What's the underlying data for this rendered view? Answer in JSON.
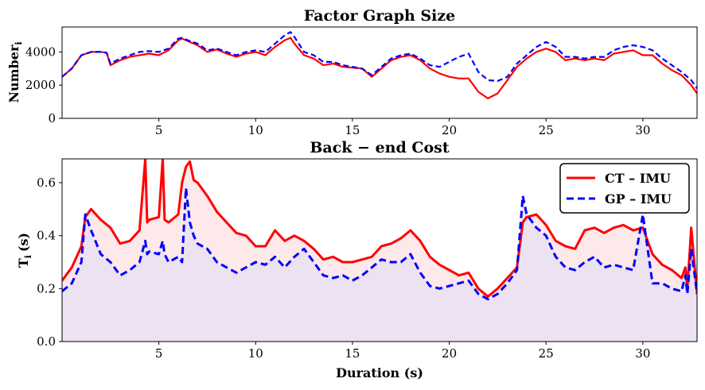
{
  "chart_data": [
    {
      "type": "line",
      "title": "Factor Graph Size",
      "ylabel": "Number",
      "ylabel_sub": "i",
      "xlabel": "",
      "xlim": [
        0,
        32.8
      ],
      "ylim": [
        0,
        5500
      ],
      "xticks": [
        5,
        10,
        15,
        20,
        25,
        30
      ],
      "yticks": [
        0,
        2000,
        4000
      ],
      "series": [
        {
          "name": "CT-IMU",
          "color": "#ff0000",
          "style": "solid",
          "x": [
            0,
            0.5,
            1,
            1.5,
            2,
            2.3,
            2.5,
            3,
            3.5,
            4,
            4.5,
            5,
            5.5,
            6,
            6.2,
            6.5,
            7,
            7.5,
            8,
            8.5,
            9,
            9.5,
            10,
            10.5,
            11,
            11.5,
            11.8,
            12,
            12.5,
            13,
            13.5,
            14,
            14.5,
            15,
            15.5,
            16,
            16.5,
            17,
            17.5,
            18,
            18.5,
            19,
            19.5,
            20,
            20.5,
            21,
            21.5,
            22,
            22.5,
            23,
            23.5,
            24,
            24.5,
            25,
            25.5,
            26,
            26.5,
            27,
            27.5,
            28,
            28.5,
            29,
            29.5,
            30,
            30.5,
            31,
            31.5,
            32,
            32.5,
            32.8
          ],
          "values": [
            2500,
            3000,
            3800,
            4000,
            4000,
            3950,
            3200,
            3500,
            3700,
            3800,
            3900,
            3800,
            4100,
            4700,
            4800,
            4650,
            4400,
            4000,
            4150,
            3900,
            3700,
            3900,
            4000,
            3800,
            4300,
            4700,
            4850,
            4500,
            3800,
            3600,
            3200,
            3300,
            3100,
            3050,
            3000,
            2500,
            3000,
            3500,
            3700,
            3800,
            3500,
            3000,
            2700,
            2500,
            2400,
            2400,
            1600,
            1200,
            1500,
            2300,
            3100,
            3600,
            4000,
            4200,
            4000,
            3500,
            3600,
            3500,
            3600,
            3500,
            3900,
            4000,
            4100,
            3800,
            3800,
            3300,
            2900,
            2600,
            2000,
            1500
          ]
        },
        {
          "name": "GP-IMU",
          "color": "#0000ff",
          "style": "dashed",
          "x": [
            0,
            0.5,
            1,
            1.5,
            2,
            2.3,
            2.5,
            3,
            3.5,
            4,
            4.5,
            5,
            5.5,
            6,
            6.2,
            6.5,
            7,
            7.5,
            8,
            8.5,
            9,
            9.5,
            10,
            10.5,
            11,
            11.5,
            11.8,
            12,
            12.5,
            13,
            13.5,
            14,
            14.5,
            15,
            15.5,
            16,
            16.5,
            17,
            17.5,
            18,
            18.5,
            19,
            19.5,
            20,
            20.5,
            21,
            21.5,
            22,
            22.5,
            23,
            23.5,
            24,
            24.5,
            25,
            25.5,
            26,
            26.5,
            27,
            27.5,
            28,
            28.5,
            29,
            29.5,
            30,
            30.5,
            31,
            31.5,
            32,
            32.5,
            32.8
          ],
          "values": [
            2500,
            3000,
            3800,
            4000,
            4000,
            3950,
            3300,
            3600,
            3800,
            4000,
            4050,
            4000,
            4200,
            4800,
            4850,
            4700,
            4500,
            4100,
            4200,
            4000,
            3800,
            4000,
            4100,
            4000,
            4500,
            5000,
            5200,
            4900,
            4000,
            3800,
            3400,
            3400,
            3200,
            3100,
            3000,
            2600,
            3100,
            3600,
            3800,
            3900,
            3600,
            3200,
            3100,
            3400,
            3700,
            3900,
            2800,
            2300,
            2250,
            2500,
            3300,
            3800,
            4300,
            4600,
            4300,
            3700,
            3700,
            3600,
            3700,
            3700,
            4100,
            4300,
            4400,
            4300,
            4100,
            3600,
            3200,
            2800,
            2300,
            1800
          ]
        }
      ]
    },
    {
      "type": "area",
      "title": "Back − end Cost",
      "xlabel": "Duration (s)",
      "ylabel": "T",
      "ylabel_sub": "i",
      "ylabel_unit": "(s)",
      "xlim": [
        0,
        32.8
      ],
      "ylim": [
        0,
        0.69
      ],
      "xticks": [
        5,
        10,
        15,
        20,
        25,
        30
      ],
      "yticks": [
        0.0,
        0.2,
        0.4,
        0.6
      ],
      "legend_position": "top-right",
      "series": [
        {
          "name": "CT – IMU",
          "color": "#ff0000",
          "fill": "#fde8ea",
          "style": "solid",
          "x": [
            0,
            0.5,
            1,
            1.2,
            1.5,
            2,
            2.5,
            3,
            3.5,
            4,
            4.3,
            4.4,
            4.5,
            5,
            5.2,
            5.3,
            5.5,
            6,
            6.2,
            6.4,
            6.6,
            6.8,
            7,
            7.5,
            8,
            8.5,
            9,
            9.5,
            10,
            10.5,
            11,
            11.5,
            12,
            12.5,
            13,
            13.5,
            14,
            14.5,
            15,
            15.5,
            16,
            16.5,
            17,
            17.5,
            18,
            18.5,
            19,
            19.5,
            20,
            20.5,
            21,
            21.5,
            22,
            22.5,
            23,
            23.5,
            23.8,
            24,
            24.5,
            25,
            25.5,
            26,
            26.5,
            27,
            27.5,
            28,
            28.5,
            29,
            29.5,
            30,
            30.5,
            31,
            31.5,
            32,
            32.2,
            32.3,
            32.5,
            32.8
          ],
          "values": [
            0.23,
            0.28,
            0.36,
            0.47,
            0.5,
            0.46,
            0.43,
            0.37,
            0.38,
            0.42,
            0.69,
            0.45,
            0.46,
            0.47,
            0.69,
            0.46,
            0.45,
            0.48,
            0.6,
            0.66,
            0.68,
            0.61,
            0.6,
            0.55,
            0.49,
            0.45,
            0.41,
            0.4,
            0.36,
            0.36,
            0.42,
            0.38,
            0.4,
            0.38,
            0.35,
            0.31,
            0.32,
            0.3,
            0.3,
            0.31,
            0.32,
            0.36,
            0.37,
            0.39,
            0.42,
            0.38,
            0.32,
            0.29,
            0.27,
            0.25,
            0.26,
            0.2,
            0.17,
            0.2,
            0.24,
            0.28,
            0.45,
            0.47,
            0.48,
            0.44,
            0.38,
            0.36,
            0.35,
            0.42,
            0.43,
            0.41,
            0.43,
            0.44,
            0.42,
            0.43,
            0.33,
            0.29,
            0.27,
            0.24,
            0.28,
            0.2,
            0.43,
            0.18
          ]
        },
        {
          "name": "GP – IMU",
          "color": "#0000ff",
          "fill": "#ece2f1",
          "style": "dashed",
          "x": [
            0,
            0.5,
            1,
            1.2,
            1.5,
            2,
            2.5,
            3,
            3.5,
            4,
            4.3,
            4.4,
            4.5,
            5,
            5.2,
            5.3,
            5.5,
            6,
            6.2,
            6.4,
            6.6,
            6.8,
            7,
            7.5,
            8,
            8.5,
            9,
            9.5,
            10,
            10.5,
            11,
            11.5,
            12,
            12.5,
            13,
            13.5,
            14,
            14.5,
            15,
            15.5,
            16,
            16.5,
            17,
            17.5,
            18,
            18.5,
            19,
            19.5,
            20,
            20.5,
            21,
            21.5,
            22,
            22.5,
            23,
            23.5,
            23.8,
            24,
            24.5,
            25,
            25.5,
            26,
            26.5,
            27,
            27.5,
            28,
            28.5,
            29,
            29.5,
            30,
            30.5,
            31,
            31.5,
            32,
            32.2,
            32.3,
            32.5,
            32.8
          ],
          "values": [
            0.19,
            0.22,
            0.3,
            0.48,
            0.42,
            0.33,
            0.3,
            0.25,
            0.27,
            0.3,
            0.38,
            0.33,
            0.34,
            0.33,
            0.38,
            0.33,
            0.3,
            0.32,
            0.3,
            0.58,
            0.45,
            0.4,
            0.37,
            0.35,
            0.3,
            0.28,
            0.26,
            0.28,
            0.3,
            0.29,
            0.32,
            0.28,
            0.32,
            0.35,
            0.3,
            0.25,
            0.24,
            0.25,
            0.23,
            0.25,
            0.28,
            0.31,
            0.3,
            0.3,
            0.33,
            0.26,
            0.21,
            0.2,
            0.21,
            0.22,
            0.23,
            0.18,
            0.16,
            0.18,
            0.22,
            0.27,
            0.55,
            0.48,
            0.43,
            0.4,
            0.32,
            0.28,
            0.27,
            0.3,
            0.32,
            0.28,
            0.29,
            0.28,
            0.27,
            0.48,
            0.22,
            0.22,
            0.2,
            0.19,
            0.25,
            0.18,
            0.35,
            0.18
          ]
        }
      ]
    }
  ]
}
